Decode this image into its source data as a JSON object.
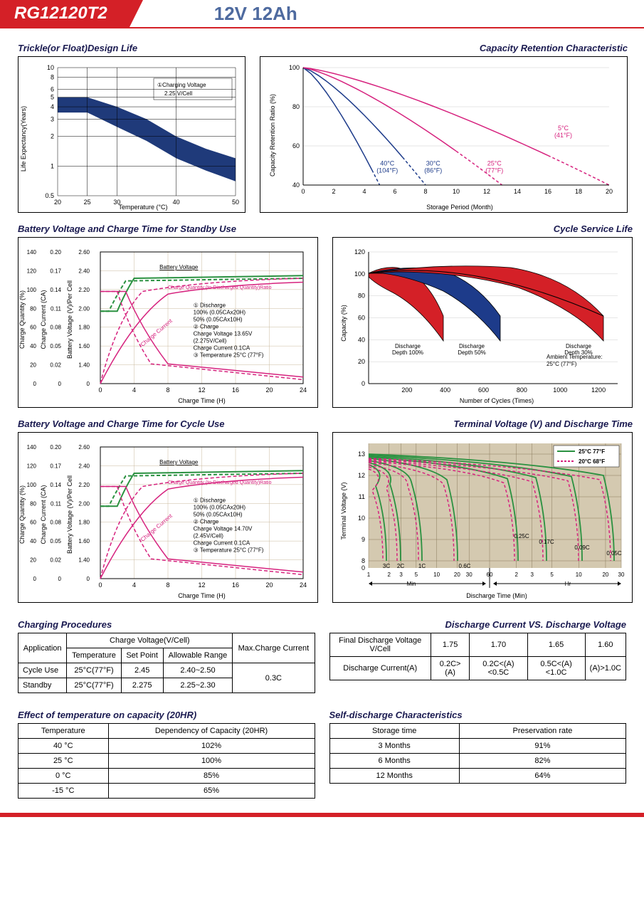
{
  "header": {
    "model": "RG12120T2",
    "spec": "12V 12Ah"
  },
  "chart1": {
    "title": "Trickle(or Float)Design Life",
    "ylabel": "Life Expectancy(Years)",
    "xlabel": "Temperature (°C)",
    "yticks": [
      "0.5",
      "1",
      "2",
      "3",
      "4",
      "5",
      "6",
      "8",
      "10"
    ],
    "xticks": [
      "20",
      "25",
      "30",
      "40",
      "50"
    ],
    "note_num": "①",
    "note_l1": "Charging Voltage",
    "note_l2": "2.25 V/Cell",
    "band_color": "#1f3a7a"
  },
  "chart2": {
    "title": "Capacity Retention Characteristic",
    "ylabel": "Capacity Retention Ratio (%)",
    "xlabel": "Storage Period (Month)",
    "yticks": [
      "40",
      "60",
      "80",
      "100"
    ],
    "xticks": [
      "0",
      "2",
      "4",
      "6",
      "8",
      "10",
      "12",
      "14",
      "16",
      "18",
      "20"
    ],
    "curves": [
      {
        "label": "40°C\n(104°F)",
        "color": "#1d3b8a",
        "dashPoint": 4.5
      },
      {
        "label": "30°C\n(86°F)",
        "color": "#1d3b8a",
        "dashPoint": 6.5
      },
      {
        "label": "25°C\n(77°F)",
        "color": "#d6227e",
        "dashPoint": 10
      },
      {
        "label": "5°C\n(41°F)",
        "color": "#d6227e",
        "dashPoint": 16
      }
    ]
  },
  "chart3": {
    "title": "Battery Voltage and Charge Time for Standby Use",
    "y1label": "Charge Quantity (%)",
    "y2label": "Charge Current (CA)",
    "y3label": "Battery Voltage (V)/Per Cell",
    "xlabel": "Charge Time (H)",
    "y1ticks": [
      "0",
      "20",
      "40",
      "60",
      "80",
      "100",
      "120",
      "140"
    ],
    "y2ticks": [
      "0",
      "0.02",
      "0.05",
      "0.08",
      "0.11",
      "0.14",
      "0.17",
      "0.20"
    ],
    "y3ticks": [
      "0",
      "1.40",
      "1.60",
      "1.80",
      "2.00",
      "2.20",
      "2.40",
      "2.60"
    ],
    "xticks": [
      "0",
      "4",
      "8",
      "12",
      "16",
      "20",
      "24"
    ],
    "legend": {
      "bv": "Battery Voltage",
      "cq": "Charge Quantity (to-Discharged Quantity)Ratio",
      "d_h": "① Discharge",
      "d1": "100% (0.05CAx20H)",
      "d2": "50% (0.05CAx10H)",
      "c_h": "② Charge",
      "c1": "Charge Voltage 13.65V",
      "c1b": "(2.275V/Cell)",
      "c2": "Charge Current 0.1CA",
      "t": "③ Temperature 25°C (77°F)",
      "cc": "Charge Current"
    },
    "green": "#2a9140",
    "pink": "#d6227e"
  },
  "chart4": {
    "title": "Cycle Service Life",
    "ylabel": "Capacity (%)",
    "xlabel": "Number of Cycles (Times)",
    "yticks": [
      "0",
      "20",
      "40",
      "60",
      "80",
      "100",
      "120"
    ],
    "xticks": [
      "200",
      "400",
      "600",
      "800",
      "1000",
      "1200"
    ],
    "labels": [
      "Discharge\nDepth 100%",
      "Discharge\nDepth 50%",
      "Discharge\nDepth 30%"
    ],
    "ambient": "Ambient Temperature:\n25°C (77°F)",
    "red": "#d42027",
    "blue": "#1d3b8a"
  },
  "chart5": {
    "title": "Battery Voltage and Charge Time for Cycle Use",
    "legend": {
      "bv": "Battery Voltage",
      "cq": "Charge Quantity (to-Discharged Quantity)Ratio",
      "d_h": "① Discharge",
      "d1": "100% (0.05CAx20H)",
      "d2": "50% (0.05CAx10H)",
      "c_h": "② Charge",
      "c1": "Charge Voltage 14.70V",
      "c1b": "(2.45V/Cell)",
      "c2": "Charge Current 0.1CA",
      "t": "③ Temperature 25°C (77°F)",
      "cc": "Charge Current"
    }
  },
  "chart6": {
    "title": "Terminal Voltage (V) and Discharge Time",
    "ylabel": "Terminal Voltage (V)",
    "xlabel": "Discharge Time (Min)",
    "yticks": [
      "0",
      "8",
      "9",
      "10",
      "11",
      "12",
      "13"
    ],
    "xticks_min": [
      "1",
      "2",
      "3",
      "5",
      "10",
      "20",
      "30",
      "60"
    ],
    "xticks_hr": [
      "2",
      "3",
      "5",
      "10",
      "20",
      "30"
    ],
    "min_lbl": "Min",
    "hr_lbl": "Hr",
    "leg1": "25°C 77°F",
    "leg2": "20°C 68°F",
    "rates": [
      "3C",
      "2C",
      "1C",
      "0.6C",
      "0.25C",
      "0.17C",
      "0.09C",
      "0.05C"
    ],
    "green": "#2a9140",
    "pink": "#d6227e",
    "bg_grid": "#c9b89d"
  },
  "table1": {
    "title": "Charging Procedures",
    "h_app": "Application",
    "h_cv": "Charge Voltage(V/Cell)",
    "h_temp": "Temperature",
    "h_sp": "Set Point",
    "h_ar": "Allowable Range",
    "h_max": "Max.Charge Current",
    "rows": [
      {
        "app": "Cycle Use",
        "temp": "25°C(77°F)",
        "sp": "2.45",
        "ar": "2.40~2.50"
      },
      {
        "app": "Standby",
        "temp": "25°C(77°F)",
        "sp": "2.275",
        "ar": "2.25~2.30"
      }
    ],
    "max": "0.3C"
  },
  "table2": {
    "title": "Discharge Current VS. Discharge Voltage",
    "h1": "Final Discharge Voltage V/Cell",
    "h2": "Discharge Current(A)",
    "cols": [
      "1.75",
      "1.70",
      "1.65",
      "1.60"
    ],
    "vals": [
      "0.2C>(A)",
      "0.2C<(A)<0.5C",
      "0.5C<(A)<1.0C",
      "(A)>1.0C"
    ]
  },
  "table3": {
    "title": "Effect of temperature on capacity (20HR)",
    "h1": "Temperature",
    "h2": "Dependency of Capacity (20HR)",
    "rows": [
      [
        "40 °C",
        "102%"
      ],
      [
        "25 °C",
        "100%"
      ],
      [
        "0 °C",
        "85%"
      ],
      [
        "-15 °C",
        "65%"
      ]
    ]
  },
  "table4": {
    "title": "Self-discharge Characteristics",
    "h1": "Storage time",
    "h2": "Preservation rate",
    "rows": [
      [
        "3 Months",
        "91%"
      ],
      [
        "6 Months",
        "82%"
      ],
      [
        "12 Months",
        "64%"
      ]
    ]
  }
}
